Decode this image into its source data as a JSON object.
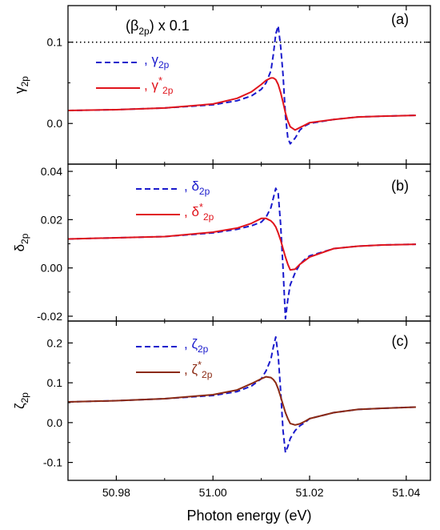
{
  "figure": {
    "xlabel": "Photon energy (eV)",
    "x_ticks": [
      "50.98",
      "51.00",
      "51.02",
      "51.04"
    ],
    "x_tick_values": [
      50.98,
      51.0,
      51.02,
      51.04
    ],
    "xlim": [
      50.97,
      51.045
    ]
  },
  "colors": {
    "blue": "#1a1acc",
    "red": "#e0141c",
    "brown": "#8b2a14",
    "frame": "#000000"
  },
  "chart_data": [
    {
      "type": "line",
      "panel_label": "(a)",
      "ylabel": "γ",
      "ylabel_sub": "2p",
      "ylim": [
        -0.05,
        0.145
      ],
      "y_ticks": [
        "0.0",
        "0.1"
      ],
      "y_tick_values": [
        0.0,
        0.1
      ],
      "annotation": {
        "text": "(β",
        "sub": "2p",
        "after": ") x 0.1"
      },
      "reference_line": {
        "y": 0.1,
        "style": "dotted"
      },
      "x": [
        50.97,
        50.98,
        50.99,
        51.0,
        51.005,
        51.008,
        51.01,
        51.011,
        51.012,
        51.0125,
        51.013,
        51.0135,
        51.014,
        51.0145,
        51.015,
        51.0155,
        51.016,
        51.017,
        51.018,
        51.019,
        51.02,
        51.025,
        51.03,
        51.035,
        51.042
      ],
      "series": [
        {
          "name": "γ",
          "sub": "2p",
          "sup": "",
          "prefix": ", ",
          "style": "dashed",
          "color": "blue",
          "values": [
            0.016,
            0.017,
            0.019,
            0.023,
            0.028,
            0.034,
            0.042,
            0.05,
            0.065,
            0.085,
            0.11,
            0.12,
            0.095,
            0.06,
            0.01,
            -0.018,
            -0.025,
            -0.018,
            -0.008,
            -0.003,
            0.0,
            0.005,
            0.008,
            0.009,
            0.01
          ]
        },
        {
          "name": "γ",
          "sub": "2p",
          "sup": "*",
          "prefix": ", ",
          "style": "solid",
          "color": "red",
          "values": [
            0.016,
            0.017,
            0.019,
            0.024,
            0.031,
            0.039,
            0.048,
            0.053,
            0.056,
            0.056,
            0.054,
            0.048,
            0.038,
            0.026,
            0.013,
            0.003,
            -0.004,
            -0.008,
            -0.005,
            -0.002,
            0.001,
            0.005,
            0.008,
            0.009,
            0.01
          ]
        }
      ]
    },
    {
      "type": "line",
      "panel_label": "(b)",
      "ylabel": "δ",
      "ylabel_sub": "2p",
      "ylim": [
        -0.022,
        0.043
      ],
      "y_ticks": [
        "-0.02",
        "0.00",
        "0.02",
        "0.04"
      ],
      "y_tick_values": [
        -0.02,
        0.0,
        0.02,
        0.04
      ],
      "x": [
        50.97,
        50.98,
        50.99,
        51.0,
        51.005,
        51.008,
        51.01,
        51.011,
        51.012,
        51.0125,
        51.013,
        51.0135,
        51.014,
        51.0145,
        51.015,
        51.0155,
        51.016,
        51.017,
        51.018,
        51.019,
        51.02,
        51.025,
        51.03,
        51.035,
        51.042
      ],
      "series": [
        {
          "name": "δ",
          "sub": "2p",
          "sup": "",
          "prefix": ", ",
          "style": "dashed",
          "color": "blue",
          "values": [
            0.012,
            0.0125,
            0.013,
            0.0145,
            0.016,
            0.0175,
            0.019,
            0.021,
            0.025,
            0.029,
            0.033,
            0.031,
            0.018,
            0.0,
            -0.021,
            -0.013,
            -0.007,
            -0.002,
            0.0015,
            0.0035,
            0.005,
            0.008,
            0.009,
            0.0095,
            0.0098
          ]
        },
        {
          "name": "δ",
          "sub": "2p",
          "sup": "*",
          "prefix": ", ",
          "style": "solid",
          "color": "red",
          "values": [
            0.012,
            0.0125,
            0.013,
            0.0148,
            0.0165,
            0.0185,
            0.0205,
            0.0205,
            0.0195,
            0.0185,
            0.017,
            0.0145,
            0.0115,
            0.008,
            0.0045,
            0.0015,
            -0.0008,
            -0.0005,
            0.0015,
            0.003,
            0.0045,
            0.008,
            0.009,
            0.0095,
            0.0098
          ]
        }
      ]
    },
    {
      "type": "line",
      "panel_label": "(c)",
      "ylabel": "ζ",
      "ylabel_sub": "2p",
      "ylim": [
        -0.145,
        0.255
      ],
      "y_ticks": [
        "-0.1",
        "0.0",
        "0.1",
        "0.2"
      ],
      "y_tick_values": [
        -0.1,
        0.0,
        0.1,
        0.2
      ],
      "x": [
        50.97,
        50.98,
        50.99,
        51.0,
        51.005,
        51.008,
        51.01,
        51.011,
        51.012,
        51.0125,
        51.013,
        51.0135,
        51.014,
        51.0145,
        51.015,
        51.0155,
        51.016,
        51.017,
        51.018,
        51.019,
        51.02,
        51.025,
        51.03,
        51.035,
        51.042
      ],
      "series": [
        {
          "name": "ζ",
          "sub": "2p",
          "sup": "",
          "prefix": ", ",
          "style": "dashed",
          "color": "blue",
          "values": [
            0.052,
            0.055,
            0.06,
            0.068,
            0.078,
            0.092,
            0.11,
            0.13,
            0.16,
            0.19,
            0.215,
            0.17,
            0.08,
            -0.02,
            -0.075,
            -0.06,
            -0.04,
            -0.02,
            -0.008,
            0.0,
            0.01,
            0.025,
            0.033,
            0.036,
            0.039
          ]
        },
        {
          "name": "ζ",
          "sub": "2p",
          "sup": "*",
          "prefix": ", ",
          "style": "solid",
          "color": "brown",
          "values": [
            0.052,
            0.055,
            0.06,
            0.07,
            0.082,
            0.098,
            0.11,
            0.115,
            0.113,
            0.108,
            0.1,
            0.085,
            0.065,
            0.045,
            0.025,
            0.01,
            -0.002,
            -0.006,
            -0.003,
            0.003,
            0.01,
            0.025,
            0.033,
            0.036,
            0.039
          ]
        }
      ]
    }
  ]
}
